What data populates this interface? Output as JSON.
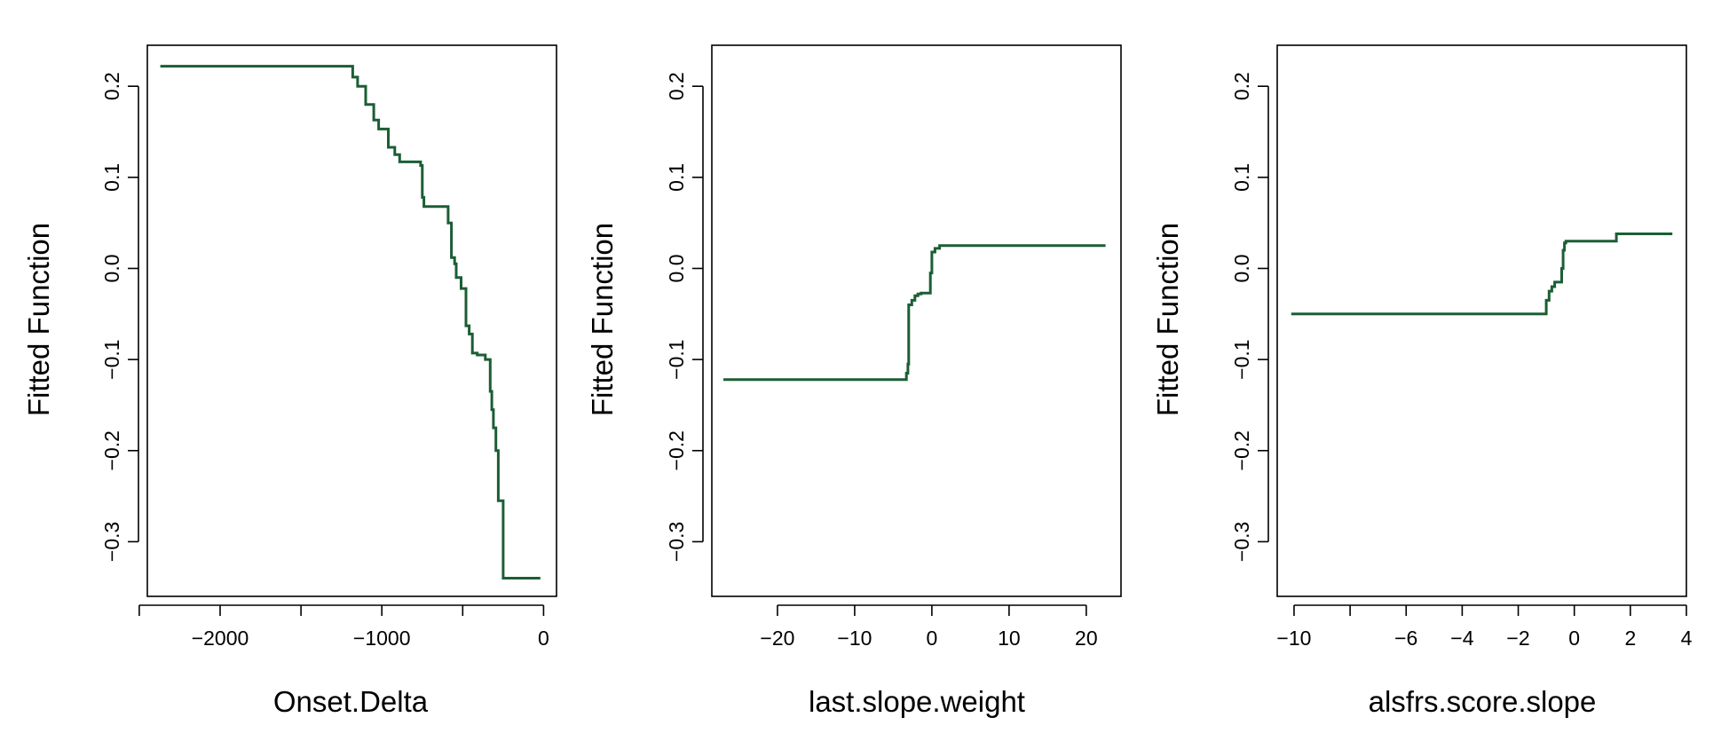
{
  "line_color": "#1b5e34",
  "chart_data": [
    {
      "type": "line",
      "step": true,
      "xlabel": "Onset.Delta",
      "ylabel": "Fitted Function",
      "xlim": [
        -2450,
        80
      ],
      "ylim": [
        -0.36,
        0.245
      ],
      "xticks": [
        -2500,
        -2000,
        -1500,
        -1000,
        -500,
        0
      ],
      "xtick_labels": [
        "",
        "−2000",
        "",
        "−1000",
        "",
        "0"
      ],
      "yticks": [
        -0.3,
        -0.2,
        -0.1,
        0.0,
        0.1,
        0.2
      ],
      "ytick_labels": [
        "−0.3",
        "−0.2",
        "−0.1",
        "0.0",
        "0.1",
        "0.2"
      ],
      "grid": false,
      "series": [
        {
          "x": [
            -2370,
            -1210,
            -1180,
            -1150,
            -1100,
            -1050,
            -1020,
            -960,
            -920,
            -890,
            -830,
            -760,
            -750,
            -740,
            -600,
            -590,
            -570,
            -550,
            -540,
            -510,
            -480,
            -460,
            -440,
            -410,
            -360,
            -330,
            -320,
            -310,
            -295,
            -280,
            -260,
            -250,
            -230,
            -220,
            -180,
            -130,
            -20
          ],
          "y": [
            0.222,
            0.222,
            0.21,
            0.2,
            0.18,
            0.163,
            0.153,
            0.133,
            0.125,
            0.117,
            0.117,
            0.113,
            0.078,
            0.068,
            0.068,
            0.05,
            0.012,
            0.005,
            -0.01,
            -0.022,
            -0.063,
            -0.072,
            -0.093,
            -0.095,
            -0.1,
            -0.135,
            -0.155,
            -0.175,
            -0.2,
            -0.255,
            -0.255,
            -0.34,
            -0.34,
            -0.34,
            -0.34,
            -0.34,
            -0.34
          ]
        }
      ]
    },
    {
      "type": "line",
      "step": true,
      "xlabel": "last.slope.weight",
      "ylabel": "Fitted Function",
      "xlim": [
        -28.5,
        24.5
      ],
      "ylim": [
        -0.36,
        0.245
      ],
      "xticks": [
        -20,
        -10,
        0,
        10,
        20
      ],
      "xtick_labels": [
        "−20",
        "−10",
        "0",
        "10",
        "20"
      ],
      "yticks": [
        -0.3,
        -0.2,
        -0.1,
        0.0,
        0.1,
        0.2
      ],
      "ytick_labels": [
        "−0.3",
        "−0.2",
        "−0.1",
        "0.0",
        "0.1",
        "0.2"
      ],
      "grid": false,
      "series": [
        {
          "x": [
            -27,
            -3.5,
            -3.3,
            -3.1,
            -3.0,
            -2.6,
            -2.2,
            -1.8,
            -1.4,
            -0.3,
            -0.2,
            0.0,
            0.4,
            1.0,
            22.5
          ],
          "y": [
            -0.122,
            -0.122,
            -0.115,
            -0.105,
            -0.04,
            -0.035,
            -0.03,
            -0.028,
            -0.027,
            -0.027,
            -0.005,
            0.018,
            0.022,
            0.025,
            0.025
          ]
        }
      ]
    },
    {
      "type": "line",
      "step": true,
      "xlabel": "alsfrs.score.slope",
      "ylabel": "Fitted Function",
      "xlim": [
        -10.6,
        4.0
      ],
      "ylim": [
        -0.36,
        0.245
      ],
      "xticks": [
        -10,
        -8,
        -6,
        -4,
        -2,
        0,
        2,
        4
      ],
      "xtick_labels": [
        "−10",
        "",
        "−6",
        "−4",
        "−2",
        "0",
        "2",
        "4"
      ],
      "yticks": [
        -0.3,
        -0.2,
        -0.1,
        0.0,
        0.1,
        0.2
      ],
      "ytick_labels": [
        "−0.3",
        "−0.2",
        "−0.1",
        "0.0",
        "0.1",
        "0.2"
      ],
      "grid": false,
      "series": [
        {
          "x": [
            -10.1,
            -1.1,
            -1.0,
            -0.9,
            -0.8,
            -0.7,
            -0.6,
            -0.45,
            -0.4,
            -0.35,
            -0.3,
            1.4,
            1.5,
            3.5
          ],
          "y": [
            -0.05,
            -0.05,
            -0.035,
            -0.025,
            -0.02,
            -0.015,
            -0.015,
            0.0,
            0.02,
            0.028,
            0.03,
            0.03,
            0.038,
            0.038
          ]
        }
      ]
    }
  ]
}
